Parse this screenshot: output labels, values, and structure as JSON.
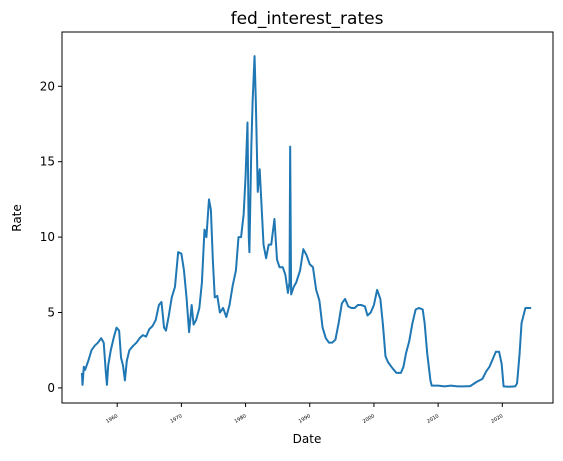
{
  "chart_data": {
    "type": "line",
    "title": "fed_interest_rates",
    "x_label": "Date",
    "y_label": "Rate",
    "x": [
      1954.5,
      1954.6,
      1954.8,
      1955.0,
      1955.5,
      1956,
      1956.5,
      1957,
      1957.5,
      1957.9,
      1958.2,
      1958.4,
      1958.6,
      1959,
      1959.5,
      1959.9,
      1960.3,
      1960.6,
      1960.9,
      1961.2,
      1961.5,
      1961.9,
      1962.5,
      1963,
      1963.5,
      1964,
      1964.5,
      1965,
      1965.5,
      1966,
      1966.5,
      1966.9,
      1967.3,
      1967.6,
      1968,
      1968.5,
      1969,
      1969.5,
      1970,
      1970.4,
      1970.8,
      1971.2,
      1971.6,
      1971.9,
      1972.3,
      1972.8,
      1973.2,
      1973.6,
      1973.9,
      1974.3,
      1974.6,
      1974.9,
      1975.2,
      1975.6,
      1976,
      1976.5,
      1977,
      1977.5,
      1978,
      1978.5,
      1978.9,
      1979.3,
      1979.7,
      1980,
      1980.3,
      1980.5,
      1980.6,
      1980.9,
      1981.1,
      1981.4,
      1981.6,
      1981.9,
      1982.2,
      1982.5,
      1982.8,
      1983.2,
      1983.6,
      1984,
      1984.5,
      1984.9,
      1985.3,
      1985.8,
      1986.2,
      1986.6,
      1986.85,
      1986.95,
      1987.1,
      1987.5,
      1987.9,
      1988.5,
      1989,
      1989.5,
      1990,
      1990.5,
      1991,
      1991.5,
      1992,
      1992.5,
      1993,
      1993.5,
      1994,
      1994.5,
      1995,
      1995.5,
      1996,
      1996.5,
      1997,
      1997.5,
      1998,
      1998.6,
      1999,
      1999.5,
      2000,
      2000.5,
      2001,
      2001.4,
      2001.8,
      2002.2,
      2002.9,
      2003.5,
      2004.2,
      2004.6,
      2005,
      2005.5,
      2006,
      2006.5,
      2007,
      2007.6,
      2007.9,
      2008.3,
      2008.8,
      2009,
      2010,
      2011,
      2012,
      2013,
      2014,
      2015,
      2016,
      2016.9,
      2017.5,
      2018,
      2018.5,
      2019,
      2019.5,
      2019.9,
      2020.2,
      2021,
      2022,
      2022.3,
      2022.7,
      2023,
      2023.6,
      2024.5
    ],
    "values": [
      1.0,
      0.2,
      1.4,
      1.2,
      1.8,
      2.5,
      2.8,
      3.0,
      3.3,
      3.0,
      1.2,
      0.2,
      1.5,
      2.5,
      3.4,
      4.0,
      3.8,
      2.0,
      1.5,
      0.5,
      1.8,
      2.5,
      2.8,
      3.0,
      3.3,
      3.5,
      3.4,
      3.9,
      4.1,
      4.5,
      5.5,
      5.7,
      4.0,
      3.8,
      4.7,
      6.0,
      6.7,
      9.0,
      8.9,
      7.8,
      6.0,
      3.7,
      5.5,
      4.2,
      4.5,
      5.3,
      7.0,
      10.5,
      10.0,
      12.5,
      11.8,
      8.5,
      6.0,
      6.1,
      5.0,
      5.3,
      4.7,
      5.5,
      6.8,
      7.8,
      10.0,
      10.0,
      11.5,
      14.0,
      17.6,
      10.0,
      9.0,
      16.0,
      19.0,
      22.0,
      19.0,
      13.0,
      14.5,
      12.0,
      9.5,
      8.6,
      9.5,
      9.5,
      11.2,
      8.5,
      8.0,
      8.0,
      7.5,
      6.3,
      7.0,
      16.0,
      6.2,
      6.7,
      7.0,
      7.8,
      9.2,
      8.8,
      8.2,
      8.0,
      6.5,
      5.8,
      4.0,
      3.3,
      3.0,
      3.0,
      3.2,
      4.3,
      5.6,
      5.9,
      5.4,
      5.3,
      5.3,
      5.5,
      5.5,
      5.4,
      4.8,
      5.0,
      5.5,
      6.5,
      5.9,
      4.2,
      2.1,
      1.7,
      1.3,
      1.0,
      1.0,
      1.4,
      2.3,
      3.1,
      4.3,
      5.2,
      5.3,
      5.2,
      4.3,
      2.3,
      0.5,
      0.15,
      0.15,
      0.1,
      0.15,
      0.1,
      0.1,
      0.12,
      0.4,
      0.6,
      1.1,
      1.4,
      1.9,
      2.4,
      2.4,
      1.6,
      0.1,
      0.08,
      0.1,
      0.3,
      2.3,
      4.3,
      5.3,
      5.3
    ],
    "color": "#1f77b4",
    "xlim": [
      1951.4,
      2027.9
    ],
    "xticks": [
      1960,
      1970,
      1980,
      1990,
      2000,
      2010,
      2020
    ],
    "ylim": [
      -1.0,
      23.6
    ],
    "yticks": [
      0,
      5,
      10,
      15,
      20
    ],
    "grid": false
  }
}
